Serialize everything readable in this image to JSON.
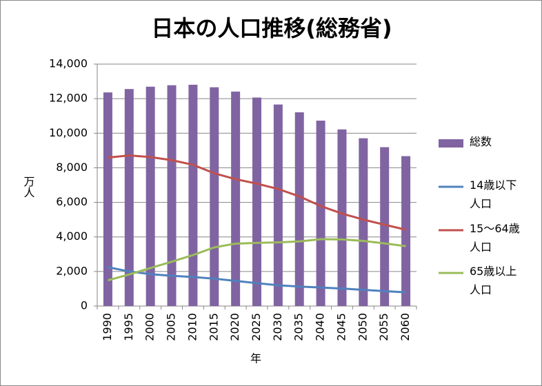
{
  "chart_data": {
    "type": "combo",
    "title": "日本の人口推移(総務省)",
    "x_label": "年",
    "y_label": "万人",
    "categories": [
      "1990",
      "1995",
      "2000",
      "2005",
      "2010",
      "2015",
      "2020",
      "2025",
      "2030",
      "2035",
      "2040",
      "2045",
      "2050",
      "2055",
      "2060"
    ],
    "series": [
      {
        "name": "総数",
        "type": "bar",
        "color": "#8064a2",
        "values": [
          12361,
          12557,
          12693,
          12777,
          12806,
          12660,
          12410,
          12066,
          11662,
          11212,
          10728,
          10221,
          9708,
          9193,
          8674
        ]
      },
      {
        "name": "14歳以下人口",
        "type": "line",
        "color": "#4f81bd",
        "values": [
          2249,
          2001,
          1847,
          1752,
          1680,
          1583,
          1457,
          1324,
          1204,
          1129,
          1073,
          1012,
          939,
          861,
          791
        ]
      },
      {
        "name": "15～64歳人口",
        "type": "line",
        "color": "#c0504d",
        "values": [
          8590,
          8716,
          8622,
          8442,
          8173,
          7682,
          7341,
          7085,
          6773,
          6343,
          5787,
          5353,
          5001,
          4706,
          4418
        ]
      },
      {
        "name": "65歳以上人口",
        "type": "line",
        "color": "#9bbb59",
        "values": [
          1489,
          1826,
          2201,
          2567,
          2948,
          3395,
          3612,
          3657,
          3685,
          3741,
          3868,
          3856,
          3768,
          3626,
          3464
        ]
      }
    ],
    "ylim": [
      0,
      14000
    ],
    "yticks": [
      0,
      {
        "value": 2000,
        "label": "2,000"
      },
      {
        "value": 4000,
        "label": "4,000"
      },
      {
        "value": 6000,
        "label": "6,000"
      },
      {
        "value": 8000,
        "label": "8,000"
      },
      {
        "value": 10000,
        "label": "10,000"
      },
      {
        "value": 12000,
        "label": "12,000"
      },
      {
        "value": 14000,
        "label": "14,000"
      }
    ],
    "grid": true,
    "legend": "right"
  }
}
